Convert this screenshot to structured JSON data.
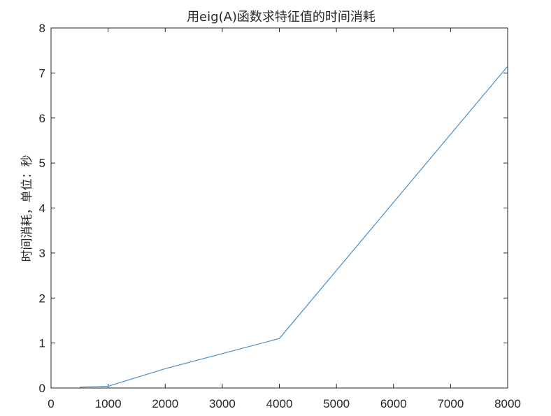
{
  "chart_data": {
    "type": "line",
    "title": "用eig(A)函数求特征值的时间消耗",
    "xlabel": "",
    "ylabel": "时间消耗，单位：秒",
    "xlim": [
      0,
      8000
    ],
    "ylim": [
      0,
      8
    ],
    "xticks": [
      "0",
      "1000",
      "2000",
      "3000",
      "4000",
      "5000",
      "6000",
      "7000",
      "8000"
    ],
    "yticks": [
      "0",
      "1",
      "2",
      "3",
      "4",
      "5",
      "6",
      "7",
      "8"
    ],
    "grid": false,
    "series": [
      {
        "color": "#4a8fc7",
        "x": [
          500,
          1000,
          2000,
          4000,
          8000
        ],
        "y": [
          0.02,
          0.04,
          0.43,
          1.1,
          7.15
        ]
      }
    ]
  }
}
